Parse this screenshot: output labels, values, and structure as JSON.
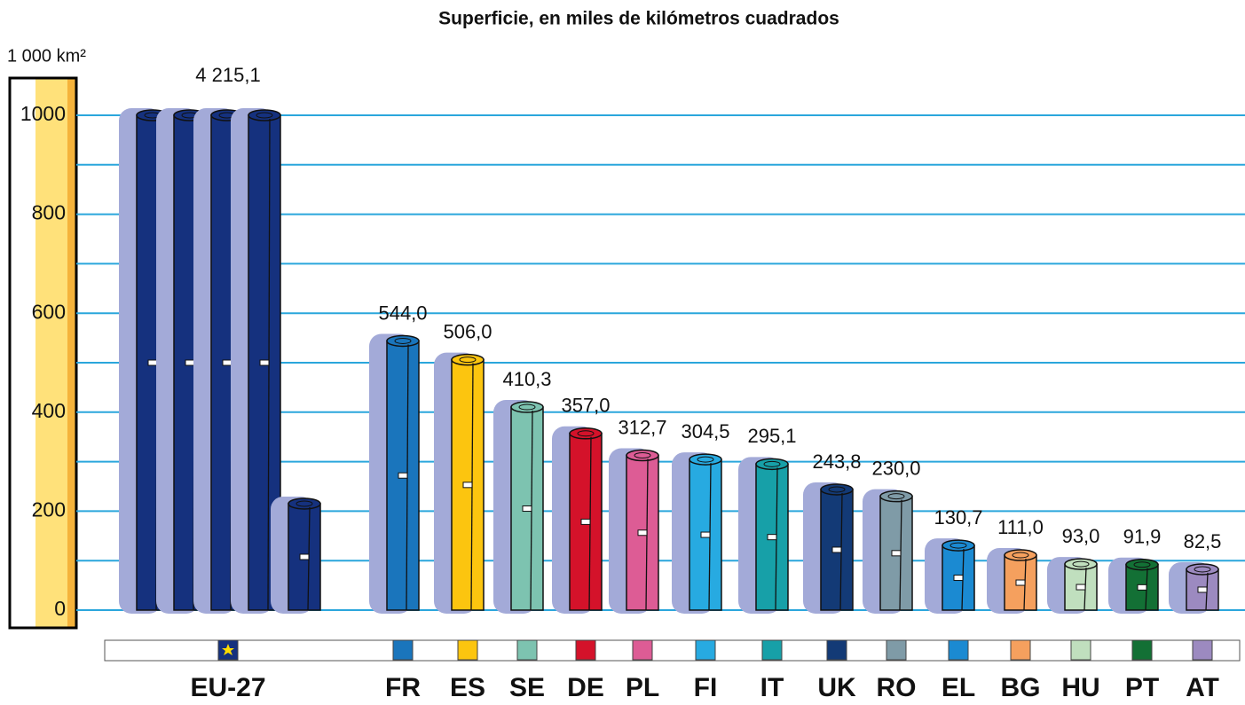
{
  "chart_data": {
    "type": "bar",
    "title": "Superficie, en miles de kilómetros cuadrados",
    "y_label": "1 000 km²",
    "categories": [
      "EU-27",
      "FR",
      "ES",
      "SE",
      "DE",
      "PL",
      "FI",
      "IT",
      "UK",
      "RO",
      "EL",
      "BG",
      "HU",
      "PT",
      "AT"
    ],
    "values": [
      4215.1,
      544.0,
      506.0,
      410.3,
      357.0,
      312.7,
      304.5,
      295.1,
      243.8,
      230.0,
      130.7,
      111.0,
      93.0,
      91.9,
      82.5
    ],
    "value_labels": [
      "4 215,1",
      "544,0",
      "506,0",
      "410,3",
      "357,0",
      "312,7",
      "304,5",
      "295,1",
      "243,8",
      "230,0",
      "130,7",
      "111,0",
      "93,0",
      "91,9",
      "82,5"
    ],
    "colors": [
      "#15317e",
      "#1a75bc",
      "#fcc50f",
      "#7dc3b0",
      "#d4122a",
      "#dd5c95",
      "#27aae1",
      "#17a0a8",
      "#133a76",
      "#7f9ba7",
      "#1b8ad2",
      "#f5a05e",
      "#c0dfbe",
      "#137035",
      "#9c8ac0"
    ],
    "ylim": [
      0,
      1000
    ],
    "yticks": [
      0,
      200,
      400,
      600,
      800,
      1000
    ],
    "minor_yticks": [
      100,
      300,
      500,
      700,
      900
    ],
    "grid": true
  }
}
